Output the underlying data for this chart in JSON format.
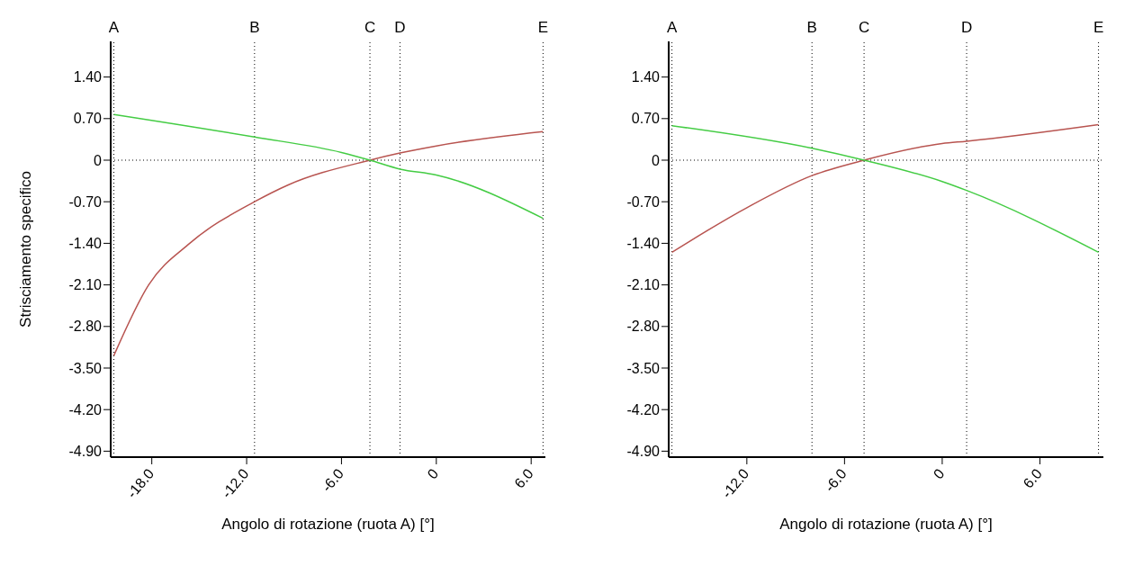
{
  "chart_data": [
    {
      "type": "line",
      "ylabel": "Strisciamento specifico",
      "xlabel": "Angolo di rotazione (ruota A) [°]",
      "xlim": [
        -20.6,
        6.9
      ],
      "xticks": [
        {
          "value": -18,
          "label": "-18.0"
        },
        {
          "value": -12,
          "label": "-12.0"
        },
        {
          "value": -6,
          "label": "-6.0"
        },
        0,
        {
          "value": 6,
          "label": "6.0"
        }
      ],
      "ylim": [
        -5.0,
        2.0
      ],
      "yticks": [
        {
          "value": 1.4,
          "label": "1.40"
        },
        {
          "value": 0.7,
          "label": "0.70"
        },
        0,
        {
          "value": -0.7,
          "label": "-0.70"
        },
        {
          "value": -1.4,
          "label": "-1.40"
        },
        {
          "value": -2.1,
          "label": "-2.10"
        },
        {
          "value": -2.8,
          "label": "-2.80"
        },
        {
          "value": -3.5,
          "label": "-3.50"
        },
        {
          "value": -4.2,
          "label": "-4.20"
        },
        {
          "value": -4.9,
          "label": "-4.90"
        }
      ],
      "grid": false,
      "legend": false,
      "marker": "none",
      "line_style": "solid",
      "series": [
        {
          "color": "#b85450",
          "x": [
            -20.4,
            -18.2,
            -15.6,
            -11.5,
            -9.4,
            -4.2,
            -2.3,
            0,
            6.75
          ],
          "values": [
            -3.29,
            -2.1,
            -1.4,
            -0.7,
            -0.42,
            0,
            0.12,
            0.24,
            0.48
          ]
        },
        {
          "color": "#44cc44",
          "x": [
            -20.4,
            -11.5,
            -6,
            -4.2,
            -2.3,
            0,
            6.75
          ],
          "values": [
            0.77,
            0.39,
            0.13,
            0,
            -0.15,
            -0.25,
            -0.98
          ]
        }
      ],
      "ref_lines": [
        {
          "axis": "x",
          "value": -20.4,
          "label": "A",
          "color": "#000000",
          "line_style": "dotted"
        },
        {
          "axis": "x",
          "value": -11.5,
          "label": "B",
          "color": "#000000",
          "line_style": "dotted"
        },
        {
          "axis": "x",
          "value": -4.2,
          "label": "C",
          "color": "#000000",
          "line_style": "dotted"
        },
        {
          "axis": "x",
          "value": -2.3,
          "label": "D",
          "color": "#000000",
          "line_style": "dotted"
        },
        {
          "axis": "x",
          "value": 6.75,
          "label": "E",
          "color": "#000000",
          "line_style": "dotted"
        },
        {
          "axis": "y",
          "value": 0,
          "color": "#000000",
          "line_style": "dotted"
        }
      ]
    },
    {
      "type": "line",
      "xlabel": "Angolo di rotazione (ruota A) [°]",
      "xlim": [
        -16.8,
        9.9
      ],
      "xticks": [
        {
          "value": -12,
          "label": "-12.0"
        },
        {
          "value": -6,
          "label": "-6.0"
        },
        0,
        {
          "value": 6,
          "label": "6.0"
        }
      ],
      "ylim": [
        -5.0,
        2.0
      ],
      "yticks": [
        {
          "value": 1.4,
          "label": "1.40"
        },
        {
          "value": 0.7,
          "label": "0.70"
        },
        0,
        {
          "value": -0.7,
          "label": "-0.70"
        },
        {
          "value": -1.4,
          "label": "-1.40"
        },
        {
          "value": -2.1,
          "label": "-2.10"
        },
        {
          "value": -2.8,
          "label": "-2.80"
        },
        {
          "value": -3.5,
          "label": "-3.50"
        },
        {
          "value": -4.2,
          "label": "-4.20"
        },
        {
          "value": -4.9,
          "label": "-4.90"
        }
      ],
      "grid": false,
      "legend": false,
      "marker": "none",
      "line_style": "solid",
      "series": [
        {
          "color": "#b85450",
          "x": [
            -16.6,
            -12,
            -8,
            -4.8,
            0,
            1.5,
            9.6
          ],
          "values": [
            -1.55,
            -0.8,
            -0.26,
            0,
            0.28,
            0.32,
            0.6
          ]
        },
        {
          "color": "#44cc44",
          "x": [
            -16.6,
            -8,
            -4.8,
            0,
            1.5,
            9.6
          ],
          "values": [
            0.58,
            0.2,
            0,
            -0.36,
            -0.51,
            -1.55
          ]
        }
      ],
      "ref_lines": [
        {
          "axis": "x",
          "value": -16.6,
          "label": "A",
          "color": "#000000",
          "line_style": "dotted"
        },
        {
          "axis": "x",
          "value": -8,
          "label": "B",
          "color": "#000000",
          "line_style": "dotted"
        },
        {
          "axis": "x",
          "value": -4.8,
          "label": "C",
          "color": "#000000",
          "line_style": "dotted"
        },
        {
          "axis": "x",
          "value": 1.5,
          "label": "D",
          "color": "#000000",
          "line_style": "dotted"
        },
        {
          "axis": "x",
          "value": 9.6,
          "label": "E",
          "color": "#000000",
          "line_style": "dotted"
        },
        {
          "axis": "y",
          "value": 0,
          "color": "#000000",
          "line_style": "dotted"
        }
      ]
    }
  ]
}
